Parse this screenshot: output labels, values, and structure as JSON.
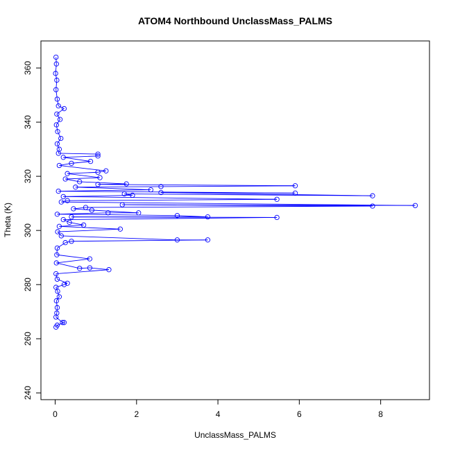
{
  "chart_data": {
    "type": "line",
    "title": "ATOM4 Northbound UnclassMass_PALMS",
    "xlabel": "UnclassMass_PALMS",
    "ylabel": "Theta (K)",
    "xlim": [
      -0.35,
      9.2
    ],
    "ylim": [
      237.5,
      370
    ],
    "x_ticks": [
      0,
      2,
      4,
      6,
      8
    ],
    "y_ticks": [
      240,
      260,
      280,
      300,
      320,
      340,
      360
    ],
    "grid": false,
    "legend": "none",
    "marker": "open-circle",
    "color": "#0000ff",
    "series": [
      {
        "values": [
          {
            "x": 0.02,
            "y": 364.0
          },
          {
            "x": 0.03,
            "y": 361.5
          },
          {
            "x": 0.01,
            "y": 358.0
          },
          {
            "x": 0.04,
            "y": 355.5
          },
          {
            "x": 0.02,
            "y": 352.0
          },
          {
            "x": 0.05,
            "y": 348.5
          },
          {
            "x": 0.08,
            "y": 346.0
          },
          {
            "x": 0.22,
            "y": 345.0
          },
          {
            "x": 0.04,
            "y": 343.0
          },
          {
            "x": 0.12,
            "y": 341.0
          },
          {
            "x": 0.03,
            "y": 339.0
          },
          {
            "x": 0.06,
            "y": 336.5
          },
          {
            "x": 0.14,
            "y": 334.0
          },
          {
            "x": 0.05,
            "y": 332.0
          },
          {
            "x": 0.1,
            "y": 330.0
          },
          {
            "x": 0.08,
            "y": 328.5
          },
          {
            "x": 1.05,
            "y": 328.2
          },
          {
            "x": 1.05,
            "y": 327.5
          },
          {
            "x": 0.2,
            "y": 327.0
          },
          {
            "x": 0.87,
            "y": 325.5
          },
          {
            "x": 0.4,
            "y": 324.8
          },
          {
            "x": 0.1,
            "y": 324.0
          },
          {
            "x": 1.25,
            "y": 322.0
          },
          {
            "x": 1.05,
            "y": 321.5
          },
          {
            "x": 0.3,
            "y": 321.0
          },
          {
            "x": 1.1,
            "y": 319.5
          },
          {
            "x": 0.25,
            "y": 319.0
          },
          {
            "x": 0.6,
            "y": 318.0
          },
          {
            "x": 1.75,
            "y": 317.2
          },
          {
            "x": 1.05,
            "y": 317.0
          },
          {
            "x": 5.9,
            "y": 316.5
          },
          {
            "x": 2.6,
            "y": 316.2
          },
          {
            "x": 0.5,
            "y": 316.0
          },
          {
            "x": 2.35,
            "y": 315.0
          },
          {
            "x": 0.08,
            "y": 314.5
          },
          {
            "x": 5.9,
            "y": 313.8
          },
          {
            "x": 2.6,
            "y": 314.0
          },
          {
            "x": 7.8,
            "y": 312.8
          },
          {
            "x": 1.7,
            "y": 313.5
          },
          {
            "x": 1.9,
            "y": 313.0
          },
          {
            "x": 0.2,
            "y": 312.5
          },
          {
            "x": 5.45,
            "y": 311.5
          },
          {
            "x": 0.3,
            "y": 311.0
          },
          {
            "x": 0.15,
            "y": 310.5
          },
          {
            "x": 8.85,
            "y": 309.2
          },
          {
            "x": 1.65,
            "y": 309.5
          },
          {
            "x": 7.8,
            "y": 309.0
          },
          {
            "x": 0.75,
            "y": 308.5
          },
          {
            "x": 0.45,
            "y": 308.0
          },
          {
            "x": 0.9,
            "y": 307.5
          },
          {
            "x": 2.05,
            "y": 306.5
          },
          {
            "x": 1.3,
            "y": 306.5
          },
          {
            "x": 0.05,
            "y": 306.0
          },
          {
            "x": 3.0,
            "y": 305.5
          },
          {
            "x": 3.75,
            "y": 305.0
          },
          {
            "x": 0.4,
            "y": 305.0
          },
          {
            "x": 5.45,
            "y": 304.8
          },
          {
            "x": 0.2,
            "y": 304.0
          },
          {
            "x": 0.35,
            "y": 303.0
          },
          {
            "x": 0.7,
            "y": 302.0
          },
          {
            "x": 0.1,
            "y": 301.5
          },
          {
            "x": 1.6,
            "y": 300.5
          },
          {
            "x": 0.06,
            "y": 299.5
          },
          {
            "x": 0.15,
            "y": 298.0
          },
          {
            "x": 3.0,
            "y": 296.5
          },
          {
            "x": 3.75,
            "y": 296.5
          },
          {
            "x": 0.4,
            "y": 296.0
          },
          {
            "x": 0.25,
            "y": 295.5
          },
          {
            "x": 0.05,
            "y": 293.5
          },
          {
            "x": 0.04,
            "y": 291.0
          },
          {
            "x": 0.85,
            "y": 289.5
          },
          {
            "x": 0.03,
            "y": 288.0
          },
          {
            "x": 0.6,
            "y": 286.0
          },
          {
            "x": 0.85,
            "y": 286.2
          },
          {
            "x": 1.32,
            "y": 285.5
          },
          {
            "x": 0.02,
            "y": 284.0
          },
          {
            "x": 0.05,
            "y": 282.0
          },
          {
            "x": 0.3,
            "y": 280.5
          },
          {
            "x": 0.22,
            "y": 280.0
          },
          {
            "x": 0.02,
            "y": 279.0
          },
          {
            "x": 0.06,
            "y": 277.5
          },
          {
            "x": 0.1,
            "y": 275.5
          },
          {
            "x": 0.03,
            "y": 274.0
          },
          {
            "x": 0.05,
            "y": 271.5
          },
          {
            "x": 0.04,
            "y": 269.5
          },
          {
            "x": 0.02,
            "y": 268.0
          },
          {
            "x": 0.18,
            "y": 266.0
          },
          {
            "x": 0.22,
            "y": 266.0
          },
          {
            "x": 0.05,
            "y": 265.0
          },
          {
            "x": 0.02,
            "y": 264.3
          }
        ]
      }
    ]
  }
}
